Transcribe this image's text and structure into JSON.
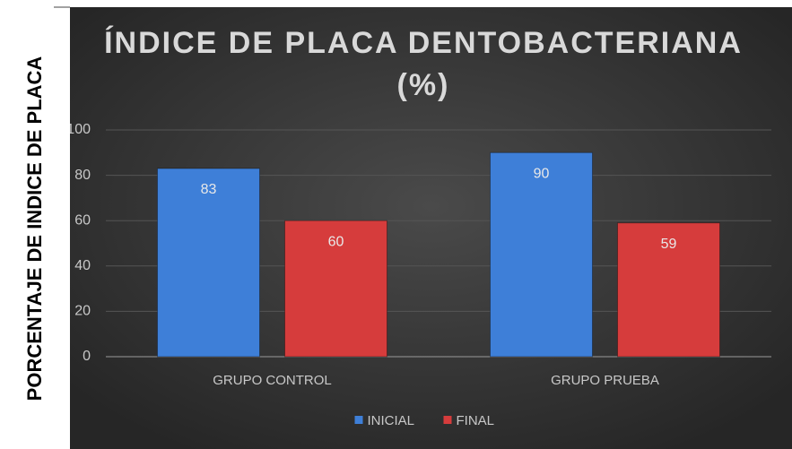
{
  "chart_data": {
    "type": "bar",
    "title": [
      "ÍNDICE DE PLACA DENTOBACTERIANA",
      "(%)"
    ],
    "ylabel": "PORCENTAJE DE INDICE DE PLACA",
    "categories": [
      "GRUPO CONTROL",
      "GRUPO PRUEBA"
    ],
    "series": [
      {
        "name": "INICIAL",
        "color": "#3e7fd8",
        "values": [
          83,
          90
        ]
      },
      {
        "name": "FINAL",
        "color": "#d63c3c",
        "values": [
          60,
          59
        ]
      }
    ],
    "ylim": [
      0,
      100
    ],
    "yticks": [
      0,
      20,
      40,
      60,
      80,
      100
    ],
    "grid": true,
    "legend": "bottom"
  }
}
